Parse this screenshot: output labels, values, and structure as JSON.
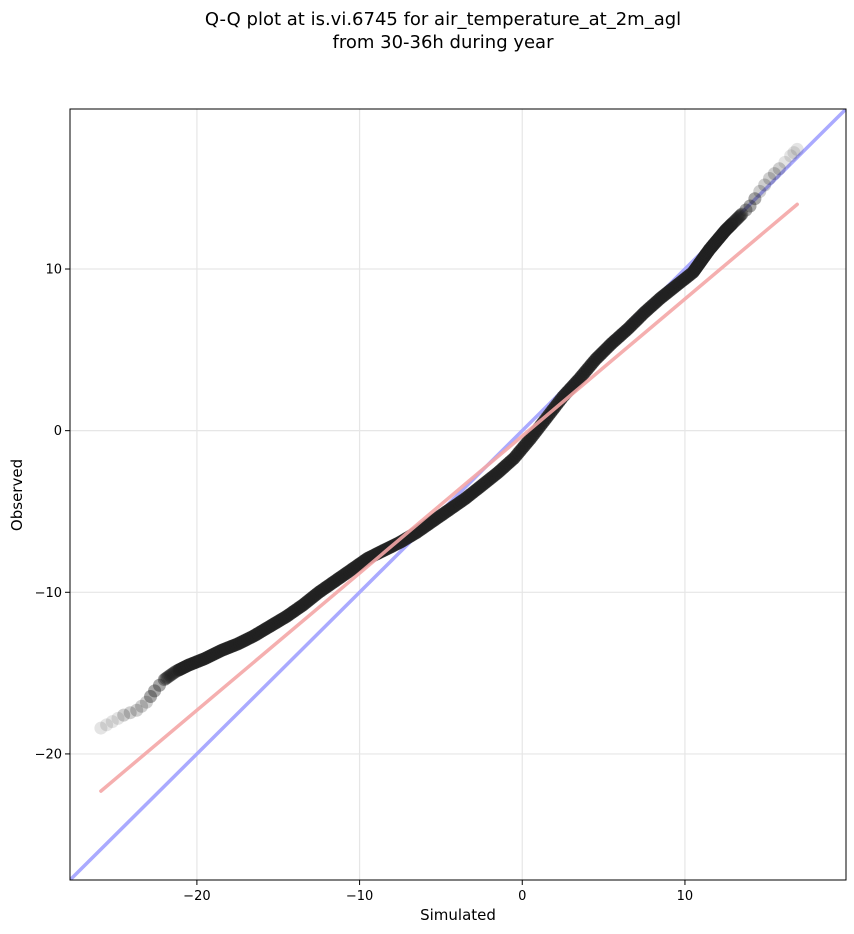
{
  "chart_data": {
    "type": "scatter",
    "title_lines": [
      "Q-Q plot at is.vi.6745 for air_temperature_at_2m_agl",
      "from 30-36h during year"
    ],
    "xlabel": "Simulated",
    "ylabel": "Observed",
    "xlim": [
      -27.8,
      19.9
    ],
    "ylim": [
      -27.8,
      19.9
    ],
    "x_ticks": [
      -20,
      -10,
      0,
      10
    ],
    "y_ticks": [
      -20,
      -10,
      0,
      10
    ],
    "x_tick_labels": [
      "−20",
      "−10",
      "0",
      "10"
    ],
    "y_tick_labels": [
      "−20",
      "−10",
      "0",
      "10"
    ],
    "grid": true,
    "quantiles": {
      "x": [
        -25.9,
        -25.2,
        -24.5,
        -23.7,
        -23.1,
        -22.6,
        -22.0,
        -21.3,
        -20.5,
        -19.5,
        -18.5,
        -17.5,
        -16.5,
        -15.5,
        -14.5,
        -13.5,
        -12.5,
        -11.5,
        -10.5,
        -9.5,
        -8.5,
        -7.5,
        -6.5,
        -5.5,
        -4.5,
        -3.5,
        -2.5,
        -1.5,
        -0.5,
        0.5,
        1.5,
        2.5,
        3.5,
        4.5,
        5.5,
        6.5,
        7.5,
        8.5,
        9.5,
        10.5,
        11.0,
        11.5,
        12.0,
        12.5,
        13.0,
        13.5,
        14.0,
        14.6,
        15.2,
        15.8,
        16.5,
        16.9
      ],
      "y": [
        -18.4,
        -18.0,
        -17.6,
        -17.3,
        -16.8,
        -16.1,
        -15.4,
        -14.9,
        -14.5,
        -14.1,
        -13.6,
        -13.2,
        -12.7,
        -12.1,
        -11.5,
        -10.8,
        -10.0,
        -9.3,
        -8.6,
        -7.9,
        -7.4,
        -6.9,
        -6.3,
        -5.6,
        -4.9,
        -4.2,
        -3.4,
        -2.6,
        -1.7,
        -0.5,
        0.8,
        2.1,
        3.2,
        4.4,
        5.4,
        6.3,
        7.3,
        8.2,
        9.0,
        9.8,
        10.5,
        11.2,
        11.8,
        12.4,
        12.9,
        13.4,
        13.9,
        14.8,
        15.6,
        16.2,
        17.0,
        17.4
      ]
    },
    "reference_line": {
      "color": "#aaaaff",
      "start": [
        -27.8,
        -27.8
      ],
      "end": [
        19.9,
        19.9
      ]
    },
    "fit_line": {
      "color": "#f4a6a6",
      "start": [
        -25.9,
        -22.3
      ],
      "end": [
        16.9,
        14.0
      ]
    },
    "point_color": "#222222"
  }
}
